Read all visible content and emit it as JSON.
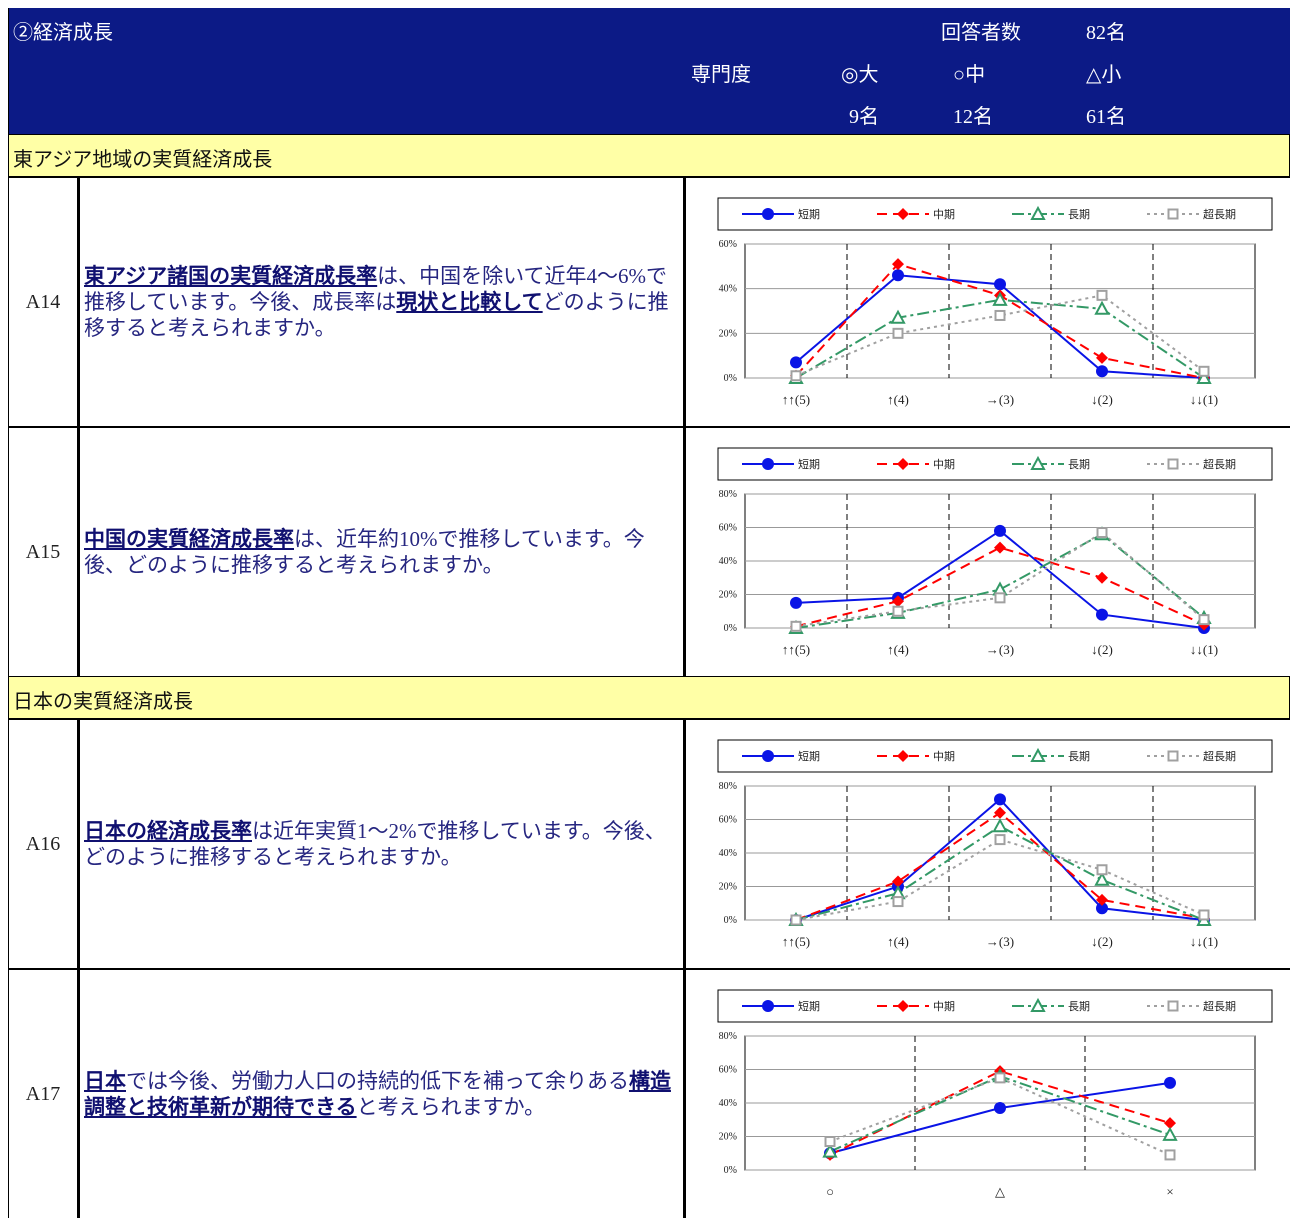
{
  "header": {
    "title": "②経済成長",
    "respondents_label": "回答者数",
    "respondents": "82名",
    "expertise_label": "専門度",
    "levels": [
      {
        "label": "◎大",
        "count": "9名"
      },
      {
        "label": "○中",
        "count": "12名"
      },
      {
        "label": "△小",
        "count": "61名"
      }
    ]
  },
  "sections": [
    {
      "title": "東アジア地域の実質経済成長",
      "rows": [
        {
          "id": "A14",
          "question": [
            {
              "text": "東アジア諸国の実質経済成長率",
              "bold": true
            },
            {
              "text": "は、中国を除いて近年4～6%で推移しています。今後、成長率は",
              "bold": false
            },
            {
              "text": "現状と比較して",
              "bold": true
            },
            {
              "text": "どのように推移すると考えられますか。",
              "bold": false
            }
          ],
          "chart": {
            "type": "line",
            "categories": [
              "↑↑(5)",
              "↑(4)",
              "→(3)",
              "↓(2)",
              "↓↓(1)"
            ],
            "ylim": [
              0,
              60
            ],
            "yticks": [
              {
                "value": 0,
                "label": "0%"
              },
              {
                "value": 20,
                "label": "20%"
              },
              {
                "value": 40,
                "label": "40%"
              },
              {
                "value": 60,
                "label": "60%"
              }
            ],
            "grid": true,
            "series": [
              {
                "name": "短期",
                "color": "#0a14e6",
                "line": "solid",
                "marker": "circle",
                "values": [
                  7,
                  46,
                  42,
                  3,
                  0
                ]
              },
              {
                "name": "中期",
                "color": "#ff0000",
                "line": "dash",
                "marker": "diamond",
                "values": [
                  1,
                  51,
                  37,
                  9,
                  0
                ]
              },
              {
                "name": "長期",
                "color": "#339966",
                "line": "dashdot",
                "marker": "triangle",
                "values": [
                  0,
                  27,
                  35,
                  31,
                  0
                ]
              },
              {
                "name": "超長期",
                "color": "#a0a0a0",
                "line": "dot",
                "marker": "square",
                "values": [
                  1,
                  20,
                  28,
                  37,
                  3
                ]
              }
            ]
          }
        },
        {
          "id": "A15",
          "question": [
            {
              "text": "中国の実質経済成長率",
              "bold": true
            },
            {
              "text": "は、近年約10%で推移しています。今後、どのように推移すると考えられますか。",
              "bold": false
            }
          ],
          "chart": {
            "type": "line",
            "categories": [
              "↑↑(5)",
              "↑(4)",
              "→(3)",
              "↓(2)",
              "↓↓(1)"
            ],
            "ylim": [
              0,
              80
            ],
            "yticks": [
              {
                "value": 0,
                "label": "0%"
              },
              {
                "value": 20,
                "label": "20%"
              },
              {
                "value": 40,
                "label": "40%"
              },
              {
                "value": 60,
                "label": "60%"
              },
              {
                "value": 80,
                "label": "80%"
              }
            ],
            "grid": true,
            "series": [
              {
                "name": "短期",
                "color": "#0a14e6",
                "line": "solid",
                "marker": "circle",
                "values": [
                  15,
                  18,
                  58,
                  8,
                  0
                ]
              },
              {
                "name": "中期",
                "color": "#ff0000",
                "line": "dash",
                "marker": "diamond",
                "values": [
                  1,
                  16,
                  48,
                  30,
                  2
                ]
              },
              {
                "name": "長期",
                "color": "#339966",
                "line": "dashdot",
                "marker": "triangle",
                "values": [
                  0,
                  9,
                  23,
                  56,
                  6
                ]
              },
              {
                "name": "超長期",
                "color": "#a0a0a0",
                "line": "dot",
                "marker": "square",
                "values": [
                  1,
                  10,
                  18,
                  57,
                  5
                ]
              }
            ]
          }
        }
      ]
    },
    {
      "title": "日本の実質経済成長",
      "rows": [
        {
          "id": "A16",
          "question": [
            {
              "text": "日本の経済成長率",
              "bold": true
            },
            {
              "text": "は近年実質1～2%で推移しています。今後、どのように推移すると考えられますか。",
              "bold": false
            }
          ],
          "chart": {
            "type": "line",
            "categories": [
              "↑↑(5)",
              "↑(4)",
              "→(3)",
              "↓(2)",
              "↓↓(1)"
            ],
            "ylim": [
              0,
              80
            ],
            "yticks": [
              {
                "value": 0,
                "label": "0%"
              },
              {
                "value": 20,
                "label": "20%"
              },
              {
                "value": 40,
                "label": "40%"
              },
              {
                "value": 60,
                "label": "60%"
              },
              {
                "value": 80,
                "label": "80%"
              }
            ],
            "grid": true,
            "series": [
              {
                "name": "短期",
                "color": "#0a14e6",
                "line": "solid",
                "marker": "circle",
                "values": [
                  0,
                  20,
                  72,
                  7,
                  0
                ]
              },
              {
                "name": "中期",
                "color": "#ff0000",
                "line": "dash",
                "marker": "diamond",
                "values": [
                  0,
                  23,
                  64,
                  12,
                  1
                ]
              },
              {
                "name": "長期",
                "color": "#339966",
                "line": "dashdot",
                "marker": "triangle",
                "values": [
                  0,
                  16,
                  56,
                  24,
                  0
                ]
              },
              {
                "name": "超長期",
                "color": "#a0a0a0",
                "line": "dot",
                "marker": "square",
                "values": [
                  0,
                  11,
                  48,
                  30,
                  3
                ]
              }
            ]
          }
        },
        {
          "id": "A17",
          "question": [
            {
              "text": "日本",
              "bold": true
            },
            {
              "text": "では今後、労働力人口の持続的低下を補って余りある",
              "bold": false
            },
            {
              "text": "構造調整と技術革新が期待できる",
              "bold": true
            },
            {
              "text": "と考えられますか。",
              "bold": false
            }
          ],
          "chart": {
            "type": "line",
            "categories": [
              "○",
              "△",
              "×"
            ],
            "ylim": [
              0,
              80
            ],
            "yticks": [
              {
                "value": 0,
                "label": "0%"
              },
              {
                "value": 20,
                "label": "20%"
              },
              {
                "value": 40,
                "label": "40%"
              },
              {
                "value": 60,
                "label": "60%"
              },
              {
                "value": 80,
                "label": "80%"
              }
            ],
            "grid": true,
            "series": [
              {
                "name": "短期",
                "color": "#0a14e6",
                "line": "solid",
                "marker": "circle",
                "values": [
                  10,
                  37,
                  52
                ]
              },
              {
                "name": "中期",
                "color": "#ff0000",
                "line": "dash",
                "marker": "diamond",
                "values": [
                  9,
                  59,
                  28
                ]
              },
              {
                "name": "長期",
                "color": "#339966",
                "line": "dashdot",
                "marker": "triangle",
                "values": [
                  11,
                  56,
                  21
                ]
              },
              {
                "name": "超長期",
                "color": "#a0a0a0",
                "line": "dot",
                "marker": "square",
                "values": [
                  17,
                  55,
                  9
                ]
              }
            ]
          }
        }
      ]
    }
  ]
}
